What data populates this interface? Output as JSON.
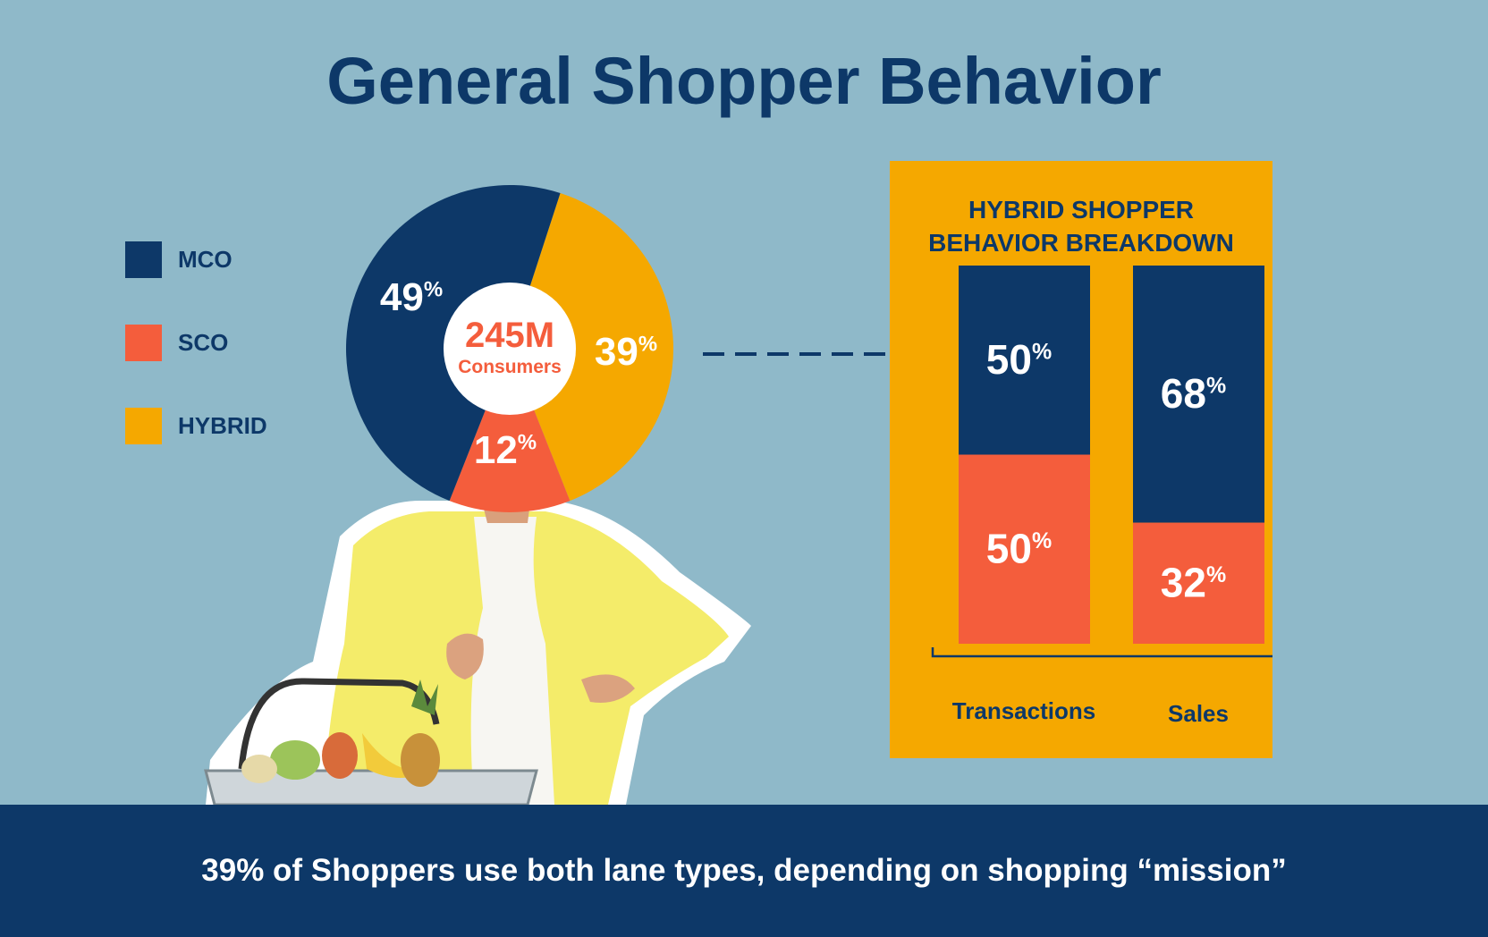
{
  "title": "General Shopper Behavior",
  "colors": {
    "mco": "#0d3868",
    "sco": "#f45d3c",
    "hybrid": "#f5a800",
    "background": "#8fb9c9"
  },
  "legend": [
    {
      "label": "MCO",
      "color": "#0d3868"
    },
    {
      "label": "SCO",
      "color": "#f45d3c"
    },
    {
      "label": "HYBRID",
      "color": "#f5a800"
    }
  ],
  "center_label": {
    "value": "245M",
    "caption": "Consumers"
  },
  "panel": {
    "title_line1": "HYBRID SHOPPER",
    "title_line2": "BEHAVIOR BREAKDOWN"
  },
  "footer": "39% of Shoppers use both lane types, depending on shopping “mission”",
  "chart_data": [
    {
      "type": "pie",
      "title": "",
      "slices": [
        {
          "label": "MCO",
          "value": 49,
          "display": "49",
          "color": "#0d3868"
        },
        {
          "label": "HYBRID",
          "value": 39,
          "display": "39",
          "color": "#f5a800"
        },
        {
          "label": "SCO",
          "value": 12,
          "display": "12",
          "color": "#f45d3c"
        }
      ],
      "center_text": "245M Consumers",
      "legend_position": "left"
    },
    {
      "type": "bar",
      "title": "HYBRID SHOPPER BEHAVIOR BREAKDOWN",
      "stacked": true,
      "categories": [
        "Transactions",
        "Sales"
      ],
      "series": [
        {
          "key": "MCO",
          "values": [
            50,
            68
          ],
          "display": [
            "50",
            "68"
          ],
          "color": "#0d3868"
        },
        {
          "key": "SCO",
          "values": [
            50,
            32
          ],
          "display": [
            "50",
            "32"
          ],
          "color": "#f45d3c"
        }
      ],
      "ylim": [
        0,
        100
      ]
    }
  ]
}
